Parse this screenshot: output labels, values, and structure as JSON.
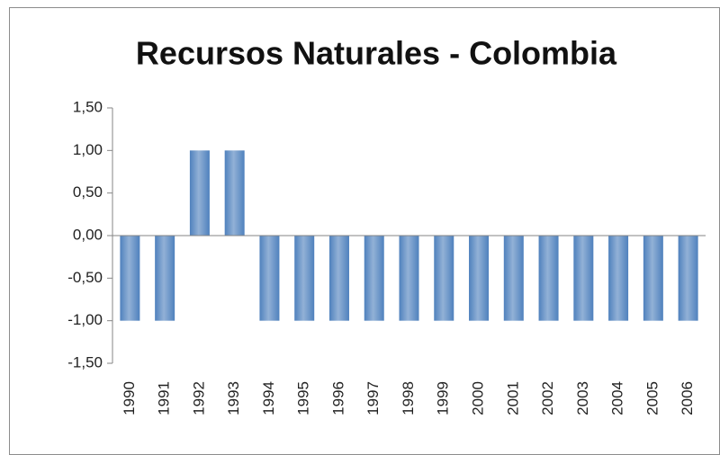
{
  "chart_data": {
    "type": "bar",
    "title": "Recursos Naturales - Colombia",
    "categories": [
      "1990",
      "1991",
      "1992",
      "1993",
      "1994",
      "1995",
      "1996",
      "1997",
      "1998",
      "1999",
      "2000",
      "2001",
      "2002",
      "2003",
      "2004",
      "2005",
      "2006"
    ],
    "values": [
      -1,
      -1,
      1,
      1,
      -1,
      -1,
      -1,
      -1,
      -1,
      -1,
      -1,
      -1,
      -1,
      -1,
      -1,
      -1,
      -1
    ],
    "color": "#4f81bd",
    "ylim": [
      -1.5,
      1.5
    ],
    "yticks": [
      {
        "value": -1.5,
        "label": "-1,50"
      },
      {
        "value": -1,
        "label": "-1,00"
      },
      {
        "value": -0.5,
        "label": "-0,50"
      },
      {
        "value": 0,
        "label": "0,00"
      },
      {
        "value": 0.5,
        "label": "0,50"
      },
      {
        "value": 1,
        "label": "1,00"
      },
      {
        "value": 1.5,
        "label": "1,50"
      }
    ]
  }
}
